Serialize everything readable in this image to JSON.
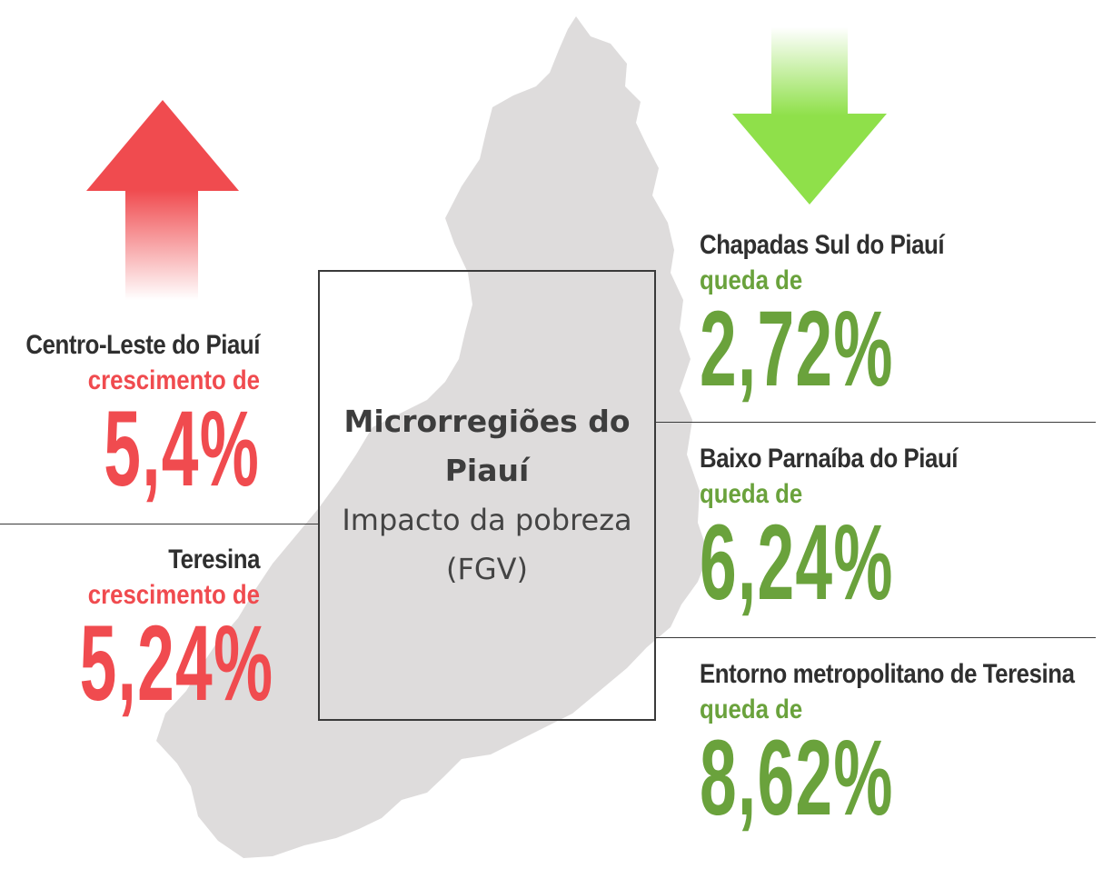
{
  "center": {
    "title": "Microrregiões do Piauí",
    "subtitle": "Impacto da pobreza (FGV)"
  },
  "increase": {
    "icon": "arrow-up-icon",
    "color": "#f04b4f",
    "items": [
      {
        "region": "Centro-Leste do Piauí",
        "label": "crescimento de",
        "value": "5,4%"
      },
      {
        "region": "Teresina",
        "label": "crescimento de",
        "value": "5,24%"
      }
    ]
  },
  "decrease": {
    "icon": "arrow-down-icon",
    "color": "#6aa23c",
    "items": [
      {
        "region": "Chapadas Sul do Piauí",
        "label": "queda de",
        "value": "2,72%"
      },
      {
        "region": "Baixo Parnaíba do Piauí",
        "label": "queda de",
        "value": "6,24%"
      },
      {
        "region": "Entorno metropolitano de Teresina",
        "label": "queda de",
        "value": "8,62%"
      }
    ]
  },
  "map": {
    "icon": "piaui-map-silhouette",
    "color": "#dedcdc"
  }
}
